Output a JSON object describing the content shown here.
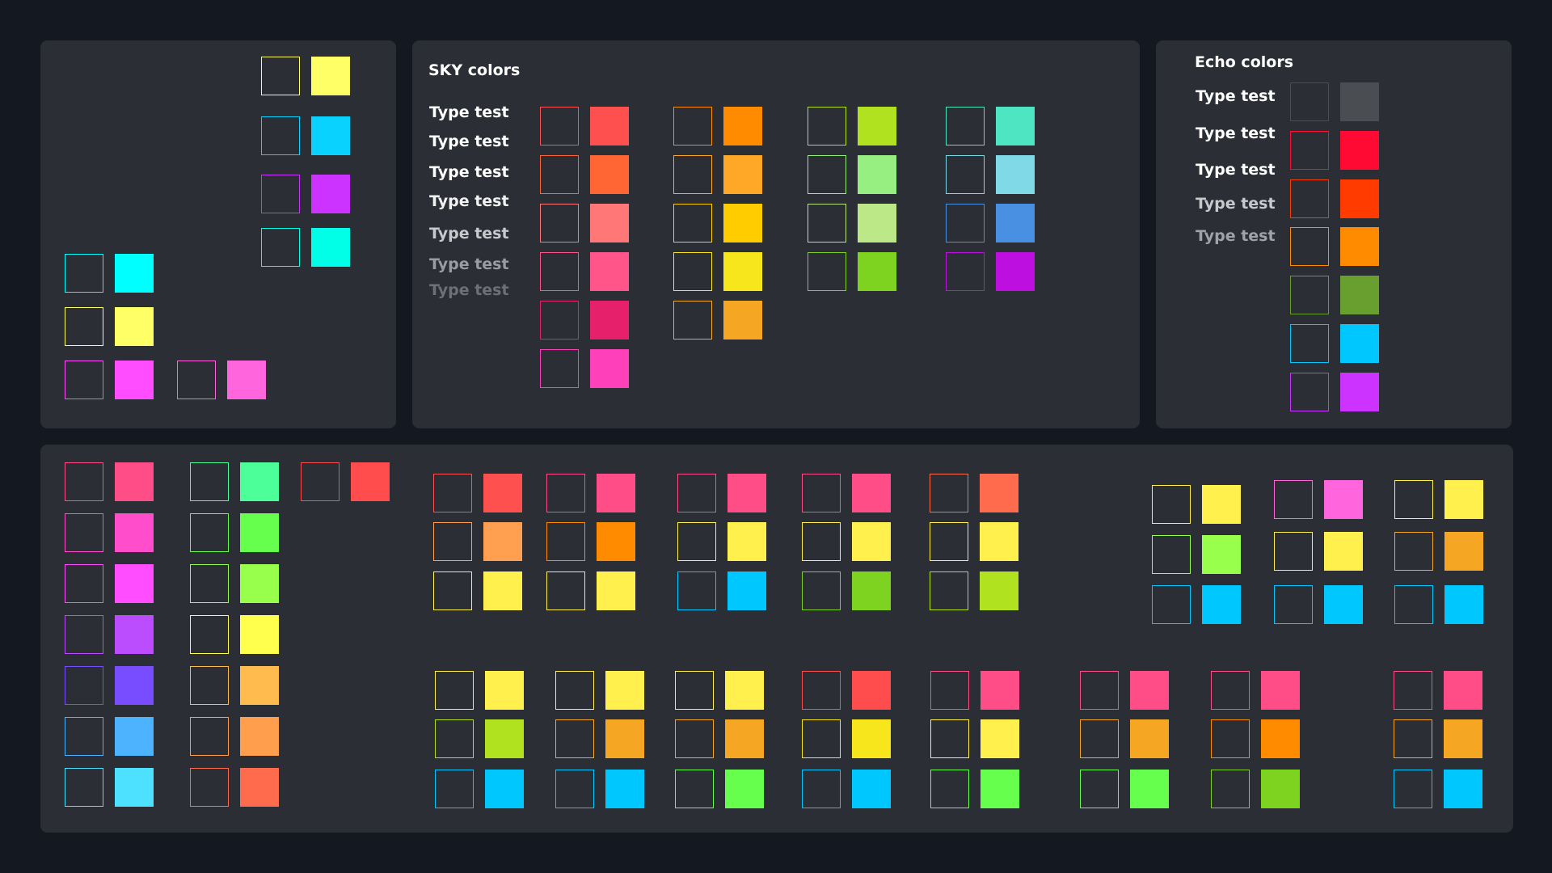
{
  "sky_panel": {
    "title": "SKY colors",
    "type_labels": [
      {
        "text": "Type test",
        "color": "#ffffff"
      },
      {
        "text": "Type test",
        "color": "#ffffff"
      },
      {
        "text": "Type test",
        "color": "#ffffff"
      },
      {
        "text": "Type test",
        "color": "#f2f2f2"
      },
      {
        "text": "Type test",
        "color": "#c8c9cc"
      },
      {
        "text": "Type test",
        "color": "#9a9ca1"
      },
      {
        "text": "Type test",
        "color": "#6e7075"
      }
    ]
  },
  "echo_panel": {
    "title": "Echo colors",
    "type_labels": [
      {
        "text": "Type test",
        "color": "#ffffff"
      },
      {
        "text": "Type test",
        "color": "#ffffff"
      },
      {
        "text": "Type test",
        "color": "#ffffff"
      },
      {
        "text": "Type test",
        "color": "#c8c9cc"
      },
      {
        "text": "Type test",
        "color": "#a0a2a7"
      }
    ]
  },
  "palettes": {
    "left": [
      [
        [
          "#ffff66",
          "#ffff66"
        ],
        [
          "#0ad2ff",
          "#0ad2ff"
        ],
        [
          "#cc33ff",
          "#cc33ff"
        ],
        [
          "#00ffe6",
          "#00ffe6"
        ]
      ],
      [
        [
          "#00ffff",
          "#00ffff"
        ],
        [
          "#ffff66",
          "#ffff66"
        ],
        [
          "#ff4dff",
          "#ff4dff"
        ]
      ],
      [
        [
          "#ff66dd",
          "#ff66dd"
        ]
      ]
    ],
    "sky": [
      [
        [
          "#ff5050",
          "#ff5050"
        ],
        [
          "#ff6633",
          "#ff6633"
        ],
        [
          "#ff7777",
          "#ff7777"
        ],
        [
          "#ff5588",
          "#ff5588"
        ],
        [
          "#e6206a",
          "#e6206a"
        ],
        [
          "#ff40bb",
          "#ff40bb"
        ]
      ],
      [
        [
          "#ff8c00",
          "#ff8c00"
        ],
        [
          "#ffa726",
          "#ffa726"
        ],
        [
          "#ffcc00",
          "#ffcc00"
        ],
        [
          "#f7e61c",
          "#f7e61c"
        ],
        [
          "#f5a623",
          "#f5a623"
        ]
      ],
      [
        [
          "#b1e21f",
          "#b1e21f"
        ],
        [
          "#97ee81",
          "#97ee81"
        ],
        [
          "#bde888",
          "#bde888"
        ],
        [
          "#7ed321",
          "#7ed321"
        ]
      ],
      [
        [
          "#4ee6c2",
          "#4ee6c2"
        ],
        [
          "#7fd9e6",
          "#7fd9e6"
        ],
        [
          "#4a90e2",
          "#4a90e2"
        ],
        [
          "#bd10e0",
          "#bd10e0"
        ]
      ]
    ],
    "echo": [
      [
        "#4a4d52",
        "#4a4d52"
      ],
      [
        "#ff0a33",
        "#ff0a33"
      ],
      [
        "#ff3b00",
        "#ff3b00"
      ],
      [
        "#ff8c00",
        "#ff8c00"
      ],
      [
        "#689f2e",
        "#689f2e"
      ],
      [
        "#00c8ff",
        "#00c8ff"
      ],
      [
        "#cc33ff",
        "#cc33ff"
      ]
    ],
    "bottom_cols": [
      [
        [
          "#ff4d88",
          "#ff4d88"
        ],
        [
          "#ff4dcc",
          "#ff4dcc"
        ],
        [
          "#ff4dff",
          "#ff4dff"
        ],
        [
          "#bb4dff",
          "#bb4dff"
        ],
        [
          "#774dff",
          "#774dff"
        ],
        [
          "#4db3ff",
          "#4db3ff"
        ],
        [
          "#4de1ff",
          "#4de1ff"
        ]
      ],
      [
        [
          "#4dff99",
          "#4dff99"
        ],
        [
          "#66ff4d",
          "#66ff4d"
        ],
        [
          "#99ff4d",
          "#99ff4d"
        ],
        [
          "#ffff4d",
          "#ffff4d"
        ],
        [
          "#ffbb4d",
          "#ffbb4d"
        ],
        [
          "#ff9f4d",
          "#ff9f4d"
        ],
        [
          "#ff6b4d",
          "#ff6b4d"
        ]
      ],
      [
        [
          "#ff4d4d",
          "#ff4d4d"
        ]
      ]
    ],
    "top_groups": [
      [
        [
          "#ff5050",
          "#ff5050"
        ],
        [
          "#ffa050",
          "#ffa050"
        ],
        [
          "#fff04d",
          "#fff04d"
        ]
      ],
      [
        [
          "#ff4d88",
          "#ff4d88"
        ],
        [
          "#ff8c00",
          "#ff8c00"
        ],
        [
          "#fff04d",
          "#fff04d"
        ]
      ],
      [
        [
          "#ff4d88",
          "#ff4d88"
        ],
        [
          "#fff04d",
          "#fff04d"
        ],
        [
          "#00c8ff",
          "#00c8ff"
        ]
      ],
      [
        [
          "#ff4d88",
          "#ff4d88"
        ],
        [
          "#fff04d",
          "#fff04d"
        ],
        [
          "#7ed321",
          "#7ed321"
        ]
      ],
      [
        [
          "#ff6b4d",
          "#ff6b4d"
        ],
        [
          "#fff04d",
          "#fff04d"
        ],
        [
          "#b1e21f",
          "#b1e21f"
        ]
      ],
      [
        [
          "#fff04d",
          "#fff04d"
        ],
        [
          "#99ff4d",
          "#99ff4d"
        ],
        [
          "#00c8ff",
          "#00c8ff"
        ]
      ],
      [
        [
          "#ff66dd",
          "#ff66dd"
        ],
        [
          "#fff04d",
          "#fff04d"
        ],
        [
          "#00c8ff",
          "#00c8ff"
        ]
      ],
      [
        [
          "#fff04d",
          "#fff04d"
        ],
        [
          "#f5a623",
          "#f5a623"
        ],
        [
          "#00c8ff",
          "#00c8ff"
        ]
      ]
    ],
    "bottom_groups": [
      [
        [
          "#fff04d",
          "#fff04d"
        ],
        [
          "#b1e21f",
          "#b1e21f"
        ],
        [
          "#00c8ff",
          "#00c8ff"
        ]
      ],
      [
        [
          "#fff04d",
          "#fff04d"
        ],
        [
          "#f5a623",
          "#f5a623"
        ],
        [
          "#00c8ff",
          "#00c8ff"
        ]
      ],
      [
        [
          "#fff04d",
          "#fff04d"
        ],
        [
          "#f5a623",
          "#f5a623"
        ],
        [
          "#66ff4d",
          "#66ff4d"
        ]
      ],
      [
        [
          "#ff4d4d",
          "#ff4d4d"
        ],
        [
          "#f7e61c",
          "#f7e61c"
        ],
        [
          "#00c8ff",
          "#00c8ff"
        ]
      ],
      [
        [
          "#ff4d88",
          "#ff4d88"
        ],
        [
          "#fff04d",
          "#fff04d"
        ],
        [
          "#66ff4d",
          "#66ff4d"
        ]
      ],
      [
        [
          "#ff4d88",
          "#ff4d88"
        ],
        [
          "#f5a623",
          "#f5a623"
        ],
        [
          "#66ff4d",
          "#66ff4d"
        ]
      ],
      [
        [
          "#ff4d88",
          "#ff4d88"
        ],
        [
          "#ff8c00",
          "#ff8c00"
        ],
        [
          "#7ed321",
          "#7ed321"
        ]
      ],
      [
        [
          "#ff4d88",
          "#ff4d88"
        ],
        [
          "#f5a623",
          "#f5a623"
        ],
        [
          "#00c8ff",
          "#00c8ff"
        ]
      ]
    ]
  }
}
